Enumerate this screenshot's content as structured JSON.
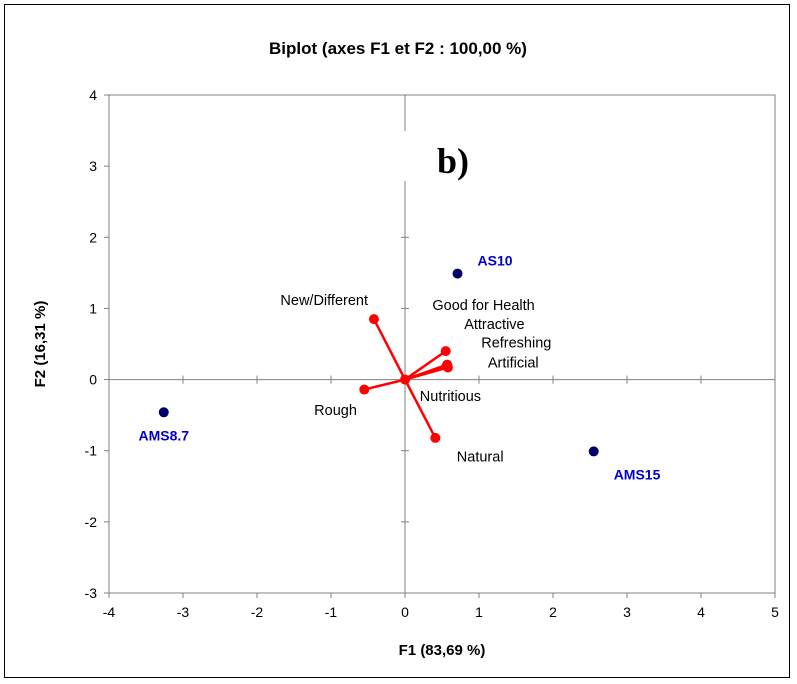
{
  "chart_data": {
    "type": "scatter",
    "subtype": "biplot",
    "title": "Biplot (axes F1 et F2 : 100,00 %)",
    "xlabel": "F1 (83,69 %)",
    "ylabel": "F2 (16,31 %)",
    "xlim": [
      -4,
      5
    ],
    "ylim": [
      -3,
      4
    ],
    "xticks": [
      -4,
      -3,
      -2,
      -1,
      0,
      1,
      2,
      3,
      4,
      5
    ],
    "yticks": [
      -3,
      -2,
      -1,
      0,
      1,
      2,
      3,
      4
    ],
    "grid": false,
    "panel_label": "b)",
    "observations": {
      "color": "#0000cc",
      "marker_color": "#000066",
      "points": [
        {
          "name": "AS10",
          "x": 0.71,
          "y": 1.49
        },
        {
          "name": "AMS8.7",
          "x": -3.26,
          "y": -0.46
        },
        {
          "name": "AMS15",
          "x": 2.55,
          "y": -1.01
        }
      ]
    },
    "variables": {
      "color": "#ff0000",
      "vectors": [
        {
          "name": "New/Different",
          "x": -0.42,
          "y": 0.85
        },
        {
          "name": "Good for Health",
          "x": 0.55,
          "y": 0.4
        },
        {
          "name": "Attractive",
          "x": 0.57,
          "y": 0.21
        },
        {
          "name": "Refreshing",
          "x": 0.58,
          "y": 0.17
        },
        {
          "name": "Artificial",
          "x": 0.56,
          "y": 0.19
        },
        {
          "name": "Rough",
          "x": -0.55,
          "y": -0.14
        },
        {
          "name": "Nutritious",
          "x": 0.0,
          "y": 0.0
        },
        {
          "name": "Natural",
          "x": 0.41,
          "y": -0.82
        }
      ]
    }
  }
}
